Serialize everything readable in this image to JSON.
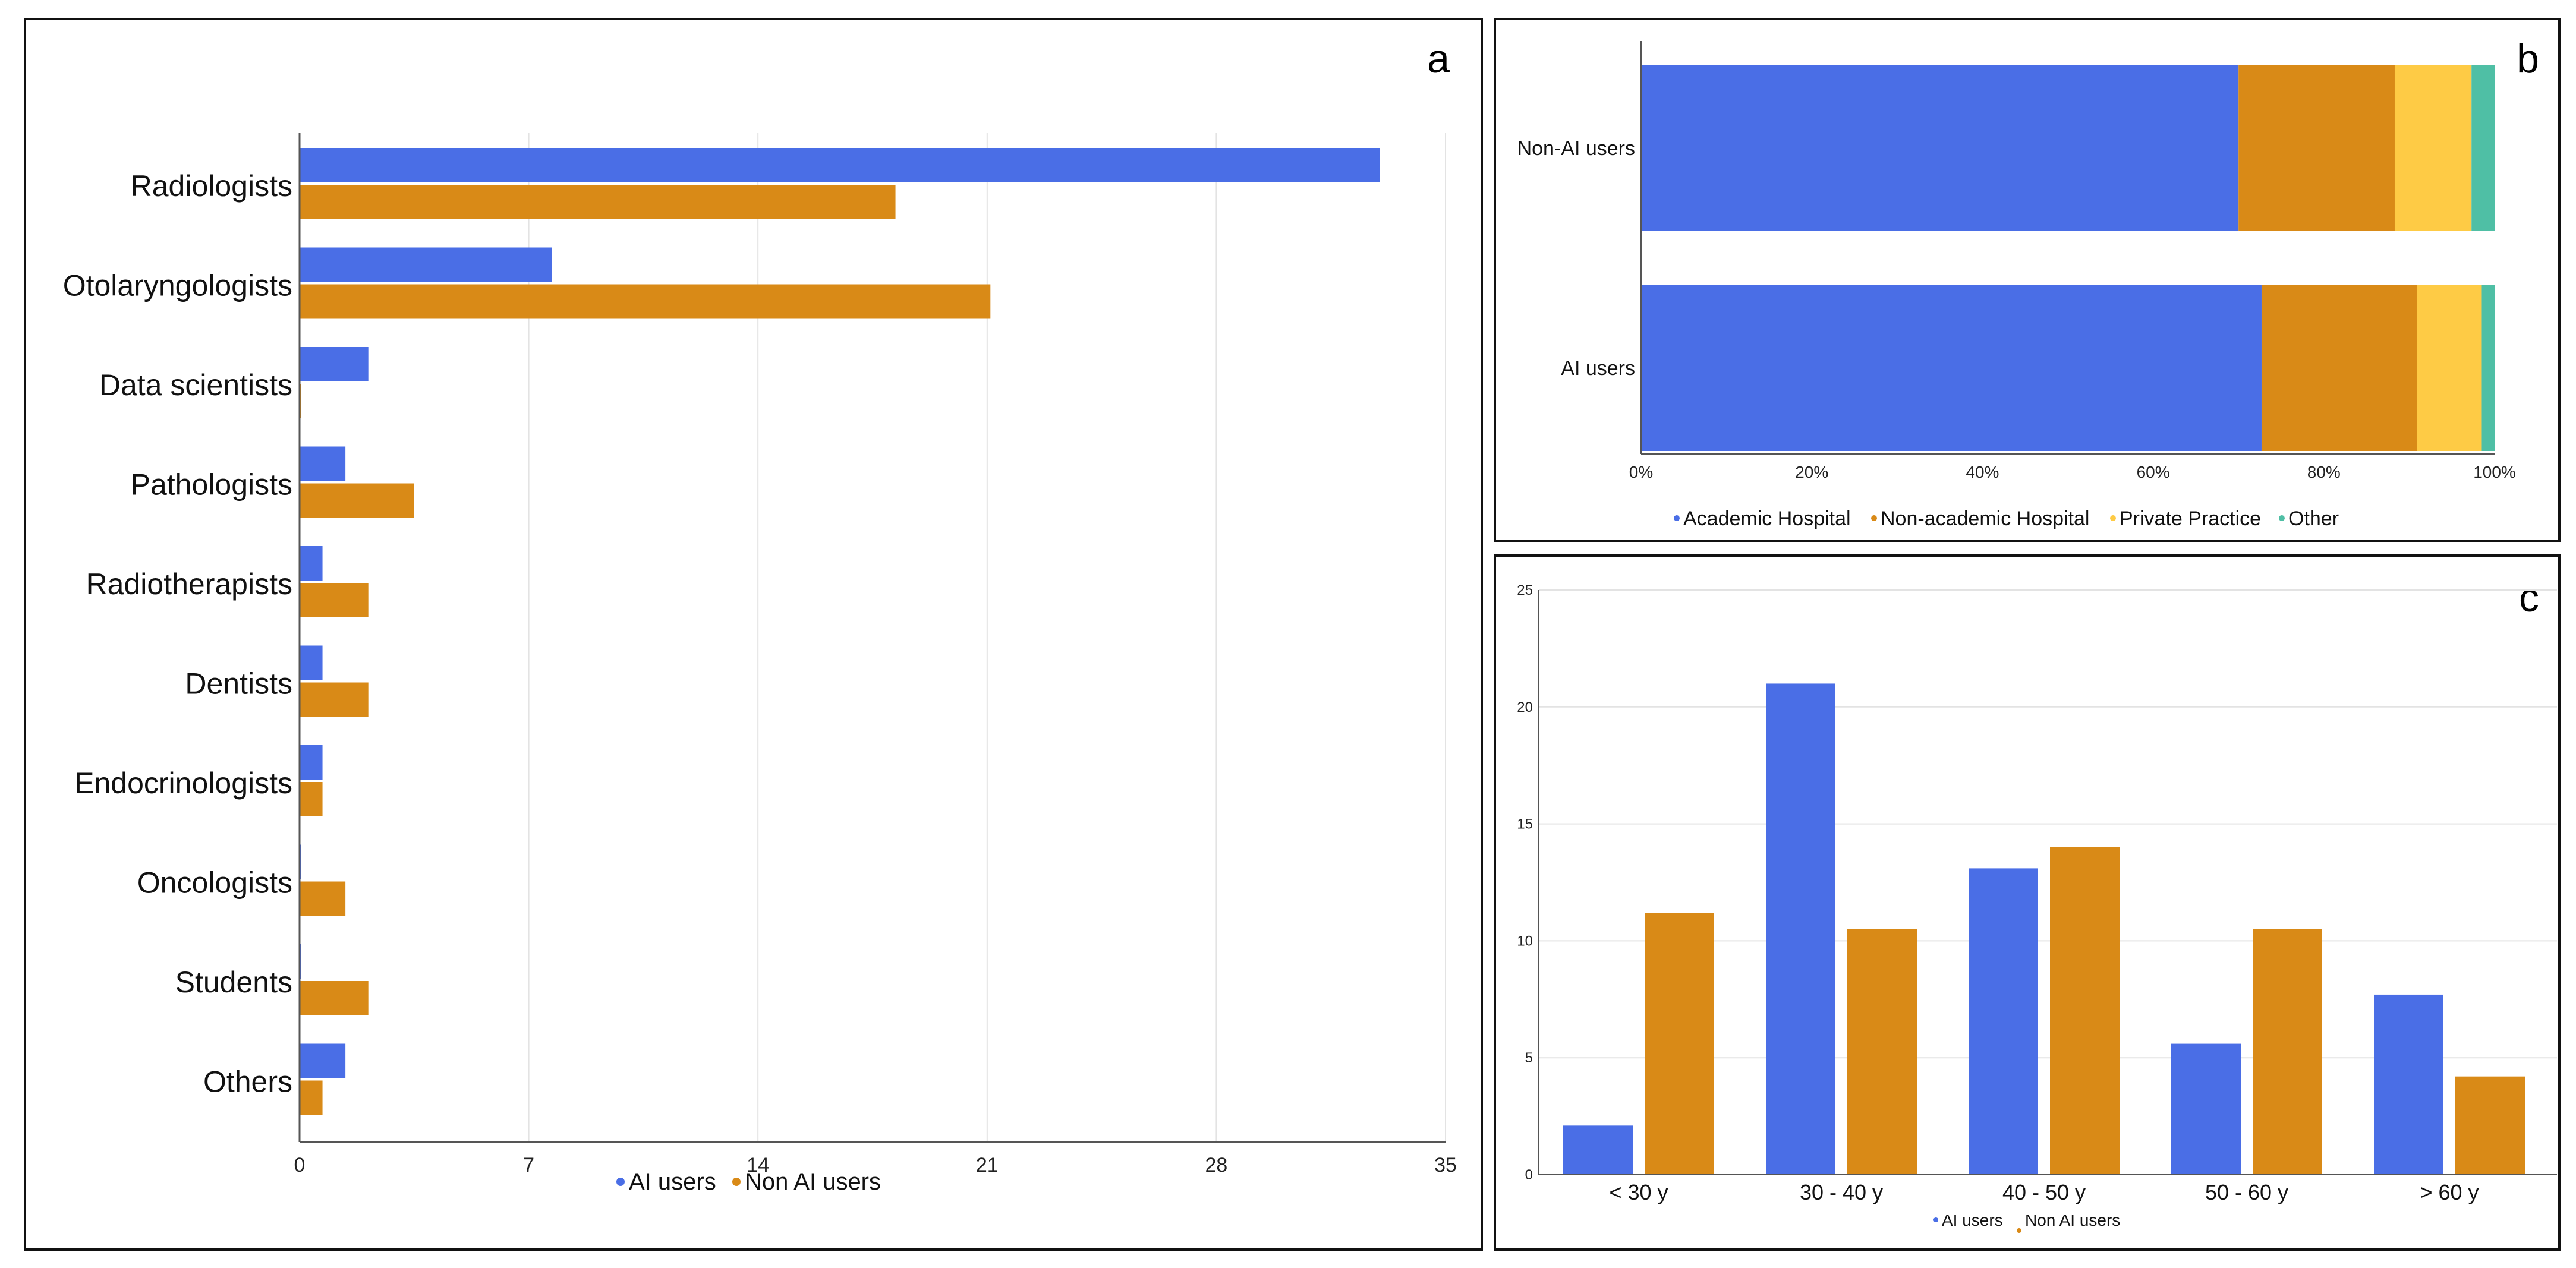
{
  "colors": {
    "ai": "#4a6ee6",
    "nonai": "#d98a17",
    "academic": "#4a6ee6",
    "nonacademic": "#d98a17",
    "private": "#fecb45",
    "other": "#4fbfa5",
    "grid": "#e3e3e3",
    "axis": "#555555"
  },
  "chart_data": [
    {
      "panel_letter": "a",
      "type": "bar",
      "orientation": "horizontal",
      "categories": [
        "Radiologists",
        "Otolaryngologists",
        "Data scientists",
        "Pathologists",
        "Radiotherapists",
        "Dentists",
        "Endocrinologists",
        "Oncologists",
        "Students",
        "Others"
      ],
      "series": [
        {
          "name": "AI users",
          "values": [
            33,
            7.7,
            2.1,
            1.4,
            0.7,
            0.7,
            0.7,
            0,
            0,
            1.4
          ]
        },
        {
          "name": "Non AI users",
          "values": [
            18.2,
            21.1,
            0,
            3.5,
            2.1,
            2.1,
            0.7,
            1.4,
            2.1,
            0.7
          ]
        }
      ],
      "xlim": [
        0,
        35
      ],
      "xticks": [
        "0",
        "7",
        "14",
        "21",
        "28",
        "35"
      ],
      "legend": [
        "AI users",
        "Non AI users"
      ],
      "legend_position": "bottom"
    },
    {
      "panel_letter": "b",
      "type": "bar",
      "orientation": "horizontal",
      "stacked": "percent",
      "categories": [
        "Non-AI users",
        "AI users"
      ],
      "series": [
        {
          "name": "Academic Hospital",
          "values": [
            70,
            72.7
          ]
        },
        {
          "name": "Non-academic Hospital",
          "values": [
            18.3,
            18.2
          ]
        },
        {
          "name": "Private Practice",
          "values": [
            9,
            7.6
          ]
        },
        {
          "name": "Other",
          "values": [
            2.7,
            1.5
          ]
        }
      ],
      "xticks": [
        "0%",
        "20%",
        "40%",
        "60%",
        "80%",
        "100%"
      ],
      "legend": [
        "Academic Hospital",
        "Non-academic Hospital",
        "Private Practice",
        "Other"
      ],
      "legend_position": "bottom"
    },
    {
      "panel_letter": "c",
      "type": "bar",
      "orientation": "vertical",
      "categories": [
        "<  30 y",
        "30 - 40 y",
        "40 - 50 y",
        "50 - 60 y",
        "> 60 y"
      ],
      "series": [
        {
          "name": "AI users",
          "values": [
            2.1,
            21,
            13.1,
            5.6,
            7.7
          ]
        },
        {
          "name": "Non AI users",
          "values": [
            11.2,
            10.5,
            14,
            10.5,
            4.2
          ]
        }
      ],
      "ylim": [
        0,
        25
      ],
      "yticks": [
        "0",
        "5",
        "10",
        "15",
        "20",
        "25"
      ],
      "legend": [
        "AI users",
        "Non AI users"
      ],
      "legend_position": "bottom"
    }
  ]
}
